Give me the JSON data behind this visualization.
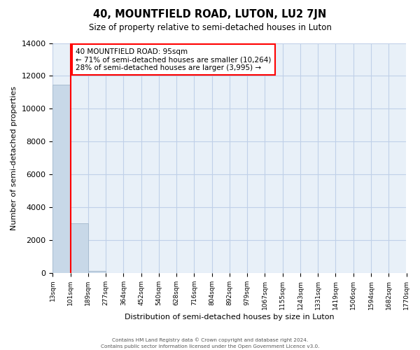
{
  "title": "40, MOUNTFIELD ROAD, LUTON, LU2 7JN",
  "subtitle": "Size of property relative to semi-detached houses in Luton",
  "xlabel": "Distribution of semi-detached houses by size in Luton",
  "ylabel": "Number of semi-detached properties",
  "bar_values": [
    11450,
    3050,
    150,
    0,
    0,
    0,
    0,
    0,
    0,
    0,
    0,
    0,
    0,
    0,
    0,
    0,
    0,
    0,
    0
  ],
  "bin_labels": [
    "13sqm",
    "101sqm",
    "189sqm",
    "277sqm",
    "364sqm",
    "452sqm",
    "540sqm",
    "628sqm",
    "716sqm",
    "804sqm",
    "892sqm",
    "979sqm",
    "1067sqm",
    "1155sqm",
    "1243sqm",
    "1331sqm",
    "1419sqm",
    "1506sqm",
    "1594sqm",
    "1682sqm",
    "1770sqm"
  ],
  "bar_color": "#c8d8e8",
  "bar_edge_color": "#a8bcd0",
  "bar_width": 1.0,
  "ylim": [
    0,
    14000
  ],
  "yticks": [
    0,
    2000,
    4000,
    6000,
    8000,
    10000,
    12000,
    14000
  ],
  "property_line_x": 1.0,
  "property_line_color": "red",
  "annotation_title": "40 MOUNTFIELD ROAD: 95sqm",
  "annotation_line1": "← 71% of semi-detached houses are smaller (10,264)",
  "annotation_line2": "28% of semi-detached houses are larger (3,995) →",
  "annotation_box_facecolor": "#ffffff",
  "annotation_box_edgecolor": "red",
  "footer1": "Contains HM Land Registry data © Crown copyright and database right 2024.",
  "footer2": "Contains public sector information licensed under the Open Government Licence v3.0.",
  "background_color": "#ffffff",
  "axes_facecolor": "#e8f0f8",
  "grid_color": "#c0d0e8"
}
